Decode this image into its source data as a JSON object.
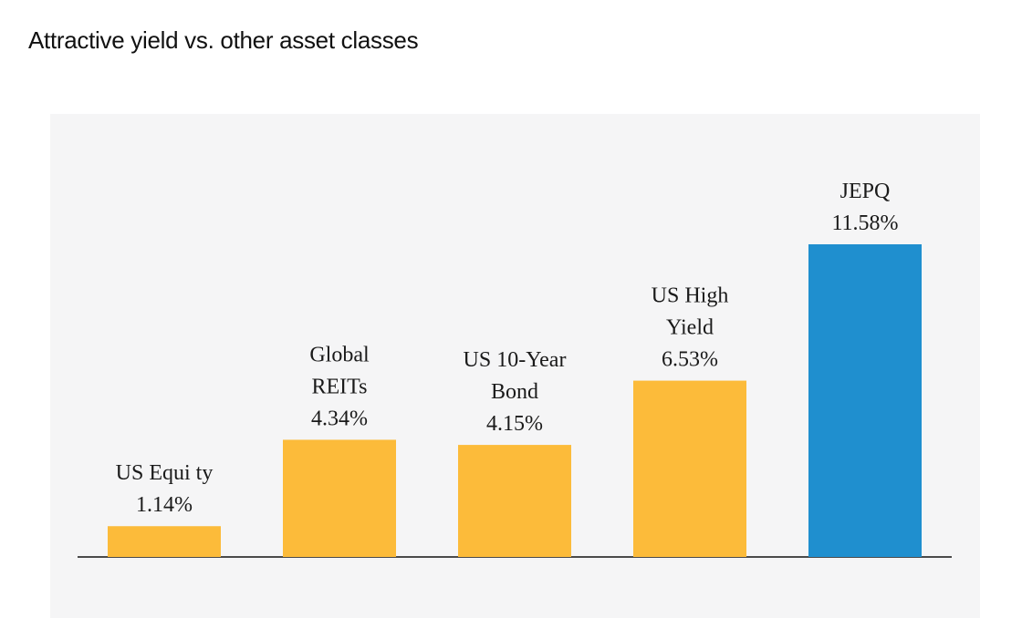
{
  "title": "Attractive yield vs. other asset classes",
  "colors": {
    "highlight_bar": "#1f8fcf",
    "other_bar": "#fcbb3a",
    "panel_background": "#f5f5f6",
    "axis_line": "#111111"
  },
  "chart_data": {
    "type": "bar",
    "title": "Attractive yield vs. other asset classes",
    "xlabel": "",
    "ylabel": "",
    "unit": "%",
    "ylim": [
      0,
      11.58
    ],
    "grid": false,
    "legend": "none",
    "highlight_category": "JEPQ",
    "categories": [
      "US Equi ty",
      "Global REITs",
      "US 10-Year Bond",
      "US High Yield",
      "JEPQ"
    ],
    "values": [
      1.14,
      4.34,
      4.15,
      6.53,
      11.58
    ],
    "label_lines": [
      [
        "US Equi ty",
        "1.14%"
      ],
      [
        "Global",
        "REITs",
        "4.34%"
      ],
      [
        "US 10-Year",
        "Bond",
        "4.15%"
      ],
      [
        "US High",
        "Yield",
        "6.53%"
      ],
      [
        "JEPQ",
        "11.58%"
      ]
    ]
  }
}
